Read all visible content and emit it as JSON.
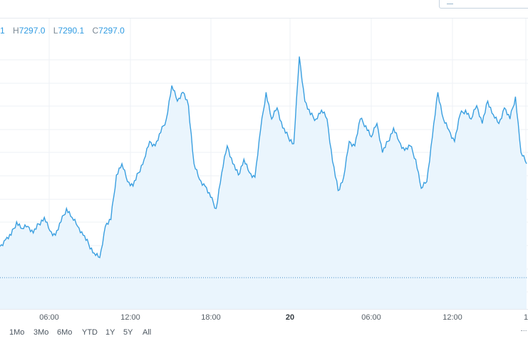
{
  "ohlc": {
    "open_value_partial": "1",
    "high_label": "H",
    "high_value": "7297.0",
    "low_label": "L",
    "low_value": "7290.1",
    "close_label": "C",
    "close_value": "7297.0"
  },
  "x_axis": {
    "ticks": [
      {
        "label": "06:00",
        "bold": false
      },
      {
        "label": "12:00",
        "bold": false
      },
      {
        "label": "18:00",
        "bold": false
      },
      {
        "label": "20",
        "bold": true
      },
      {
        "label": "06:00",
        "bold": false
      },
      {
        "label": "12:00",
        "bold": false
      },
      {
        "label": "1",
        "bold": false
      }
    ]
  },
  "range_buttons": [
    "1Mo",
    "3Mo",
    "6Mo",
    "YTD",
    "1Y",
    "5Y",
    "All"
  ],
  "colors": {
    "line": "#3a9fe0",
    "area": "#eaf5fd",
    "grid": "#eef1f5",
    "baseline": "#4a90c8"
  },
  "chart_data": {
    "type": "area",
    "x_tick_labels": [
      "06:00",
      "12:00",
      "18:00",
      "20",
      "06:00",
      "12:00",
      "1"
    ],
    "series": [
      {
        "values": [
          7253,
          7256,
          7258,
          7264,
          7261,
          7262,
          7259,
          7263,
          7266,
          7260,
          7258,
          7264,
          7270,
          7266,
          7262,
          7258,
          7254,
          7250,
          7248,
          7262,
          7265,
          7285,
          7290,
          7282,
          7280,
          7286,
          7292,
          7300,
          7298,
          7304,
          7310,
          7325,
          7318,
          7322,
          7316,
          7290,
          7283,
          7280,
          7275,
          7270,
          7286,
          7298,
          7290,
          7285,
          7292,
          7286,
          7284,
          7305,
          7322,
          7310,
          7315,
          7306,
          7302,
          7299,
          7338,
          7318,
          7312,
          7310,
          7314,
          7310,
          7291,
          7278,
          7284,
          7300,
          7298,
          7310,
          7307,
          7302,
          7308,
          7295,
          7300,
          7306,
          7300,
          7296,
          7298,
          7292,
          7279,
          7282,
          7302,
          7322,
          7310,
          7305,
          7300,
          7312,
          7314,
          7310,
          7316,
          7308,
          7318,
          7312,
          7308,
          7315,
          7310,
          7320,
          7295,
          7290
        ]
      }
    ],
    "ylim": [
      7225,
      7355
    ],
    "baseline": 7239,
    "grid": true
  }
}
